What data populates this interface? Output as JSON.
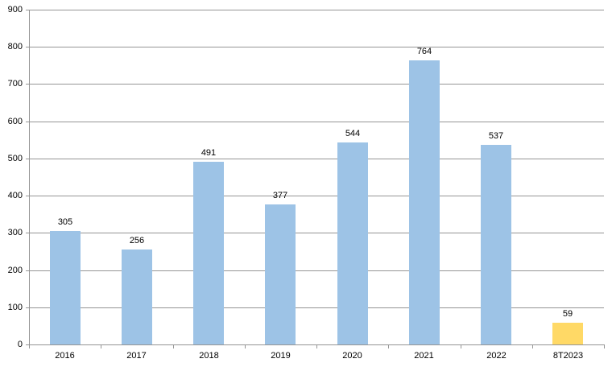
{
  "chart_data": {
    "type": "bar",
    "categories": [
      "2016",
      "2017",
      "2018",
      "2019",
      "2020",
      "2021",
      "2022",
      "8T2023"
    ],
    "values": [
      305,
      256,
      491,
      377,
      544,
      764,
      537,
      59
    ],
    "data_labels": [
      "305",
      "256",
      "491",
      "377",
      "544",
      "764",
      "537",
      "59"
    ],
    "bar_colors": [
      "#9DC3E6",
      "#9DC3E6",
      "#9DC3E6",
      "#9DC3E6",
      "#9DC3E6",
      "#9DC3E6",
      "#9DC3E6",
      "#FFD966"
    ],
    "title": "",
    "xlabel": "",
    "ylabel": "",
    "ylim": [
      0,
      900
    ],
    "ytick_step": 100,
    "ytick_labels": [
      "0",
      "100",
      "200",
      "300",
      "400",
      "500",
      "600",
      "700",
      "800",
      "900"
    ],
    "grid": true,
    "legend_position": "none"
  },
  "colors": {
    "bar_default": "#9DC3E6",
    "bar_highlight": "#FFD966",
    "gridline": "#959595",
    "axis": "#959595",
    "label_text": "#000000",
    "background": "#FFFFFF"
  }
}
